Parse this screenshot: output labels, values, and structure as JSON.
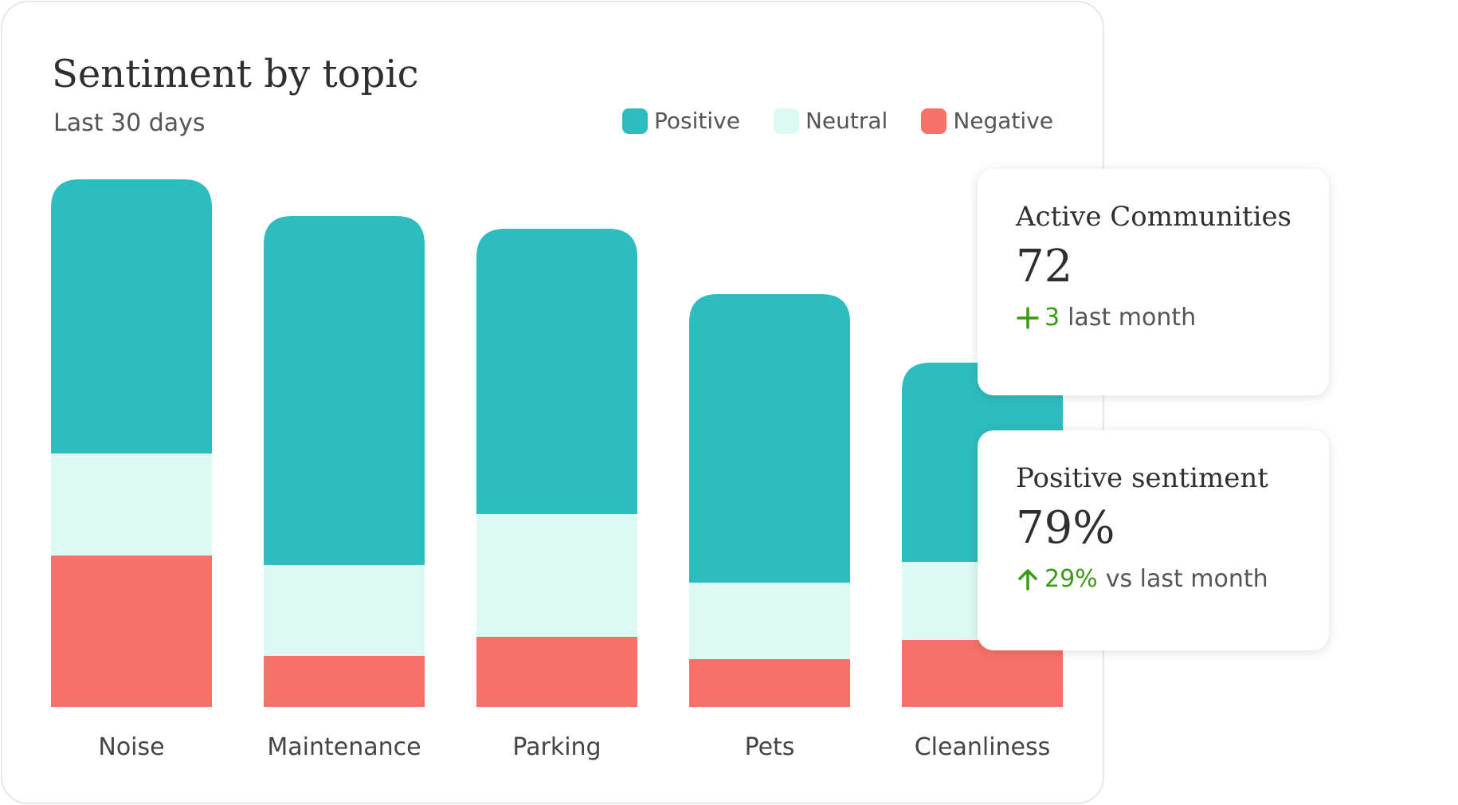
{
  "colors": {
    "positive": "#2ebdbf",
    "neutral": "#dcfaf3",
    "negative": "#f77168",
    "delta_green": "#3a9a14"
  },
  "chart_data": {
    "type": "bar",
    "stacked": true,
    "title": "Sentiment by topic",
    "subtitle": "Last 30 days",
    "legend_position": "top-right",
    "grid": false,
    "categories": [
      "Noise",
      "Maintenance",
      "Parking",
      "Pets",
      "Cleanliness"
    ],
    "series": [
      {
        "name": "Negative",
        "color": "#f77168",
        "values": [
          95,
          32,
          44,
          30,
          42
        ]
      },
      {
        "name": "Neutral",
        "color": "#dcfaf3",
        "values": [
          64,
          57,
          77,
          48,
          49
        ]
      },
      {
        "name": "Positive",
        "color": "#2ebdbf",
        "values": [
          172,
          219,
          179,
          181,
          125
        ]
      }
    ],
    "xlabel": "",
    "ylabel": ""
  },
  "stats": [
    {
      "title": "Active Communities",
      "value": "72",
      "delta_icon": "plus-icon",
      "delta_value": "3",
      "delta_text": "last month"
    },
    {
      "title": "Positive sentiment",
      "value": "79%",
      "delta_icon": "arrow-up-icon",
      "delta_value": "29%",
      "delta_text": "vs last month"
    }
  ]
}
